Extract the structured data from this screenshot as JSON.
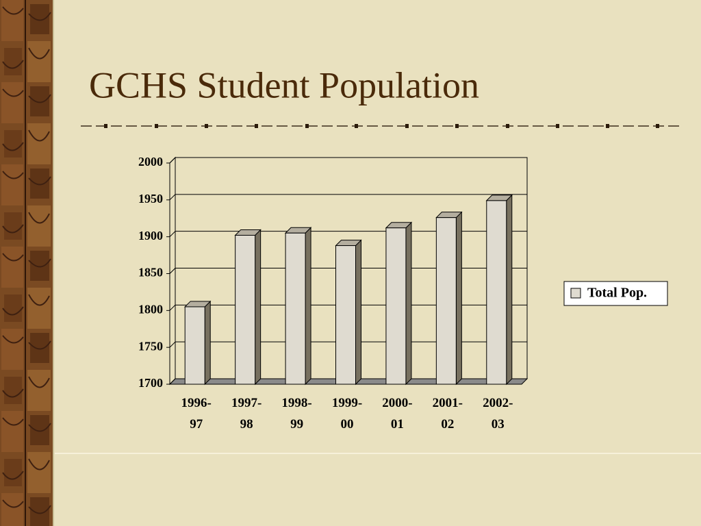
{
  "chart_data": {
    "type": "bar",
    "title": "GCHS Student Population",
    "categories": [
      "1996-97",
      "1997-98",
      "1998-99",
      "1999-00",
      "2000-01",
      "2001-02",
      "2002-03"
    ],
    "series": [
      {
        "name": "Total Pop.",
        "color": "#dfdbd0",
        "values": [
          1805,
          1902,
          1905,
          1888,
          1912,
          1926,
          1949
        ]
      }
    ],
    "ylim": [
      1700,
      2000
    ],
    "yticks": [
      1700,
      1750,
      1800,
      1850,
      1900,
      1950,
      2000
    ],
    "grid": true,
    "legend": "right"
  }
}
